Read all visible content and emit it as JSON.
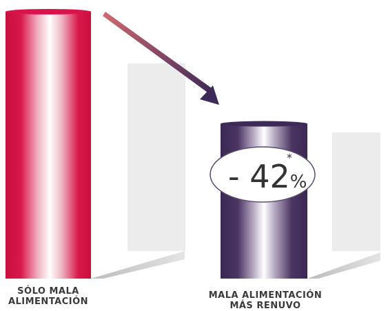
{
  "chart_data": {
    "type": "bar",
    "categories": [
      [
        "SÓLO MALA",
        "ALIMENTACIÓN"
      ],
      [
        "MALA ALIMENTACIÓN",
        "MÁS RENUVO"
      ]
    ],
    "values": [
      100,
      58
    ],
    "colors": [
      "#d8144a",
      "#3e2a56"
    ],
    "annotation": {
      "prefix": "- 42",
      "unit": "%",
      "mark": "*"
    }
  }
}
